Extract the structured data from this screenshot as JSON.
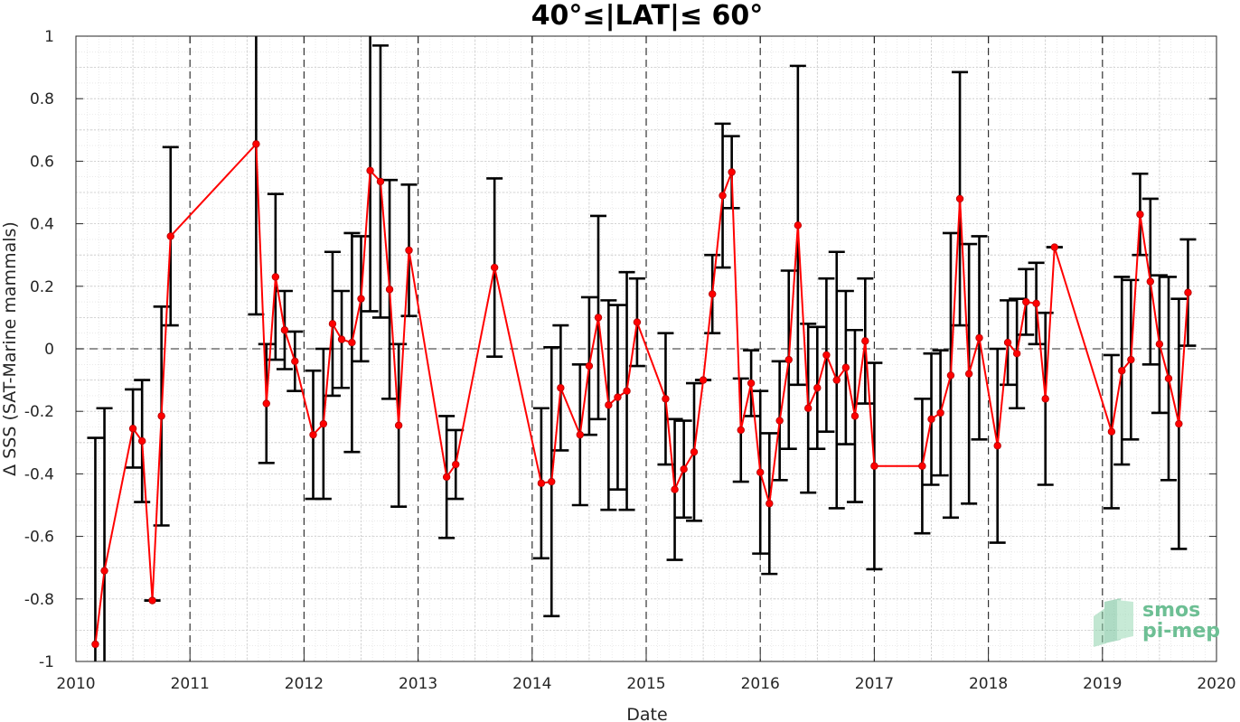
{
  "chart_data": {
    "type": "line",
    "title": "40°≤|LAT|≤ 60°",
    "xlabel": "Date",
    "ylabel": "Δ SSS (SAT-Marine mammals)",
    "xlim": [
      2010,
      2020
    ],
    "ylim": [
      -1,
      1
    ],
    "x_ticks": [
      "2010",
      "2011",
      "2012",
      "2013",
      "2014",
      "2015",
      "2016",
      "2017",
      "2018",
      "2019",
      "2020"
    ],
    "y_ticks": [
      "-1",
      "-0.8",
      "-0.6",
      "-0.4",
      "-0.2",
      "0",
      "0.2",
      "0.4",
      "0.6",
      "0.8",
      "1"
    ],
    "grid": "major and minor",
    "reference_line": 0,
    "series": [
      {
        "color": "#ff0000",
        "errorbar_color": "#000000",
        "points": [
          {
            "x": 2010.17,
            "y": -0.945,
            "err": 0.66
          },
          {
            "x": 2010.25,
            "y": -0.71,
            "err": 0.52
          },
          {
            "x": 2010.5,
            "y": -0.255,
            "err": 0.125
          },
          {
            "x": 2010.58,
            "y": -0.295,
            "err": 0.195
          },
          {
            "x": 2010.67,
            "y": -0.805,
            "err": 0.0
          },
          {
            "x": 2010.75,
            "y": -0.215,
            "err": 0.35
          },
          {
            "x": 2010.83,
            "y": 0.36,
            "err": 0.285
          },
          {
            "x": 2011.58,
            "y": 0.655,
            "err": 0.545
          },
          {
            "x": 2011.67,
            "y": -0.175,
            "err": 0.19
          },
          {
            "x": 2011.75,
            "y": 0.23,
            "err": 0.265
          },
          {
            "x": 2011.83,
            "y": 0.06,
            "err": 0.125
          },
          {
            "x": 2011.92,
            "y": -0.04,
            "err": 0.095
          },
          {
            "x": 2012.08,
            "y": -0.275,
            "err": 0.205
          },
          {
            "x": 2012.17,
            "y": -0.24,
            "err": 0.24
          },
          {
            "x": 2012.25,
            "y": 0.08,
            "err": 0.23
          },
          {
            "x": 2012.33,
            "y": 0.03,
            "err": 0.155
          },
          {
            "x": 2012.42,
            "y": 0.02,
            "err": 0.35
          },
          {
            "x": 2012.5,
            "y": 0.16,
            "err": 0.2
          },
          {
            "x": 2012.58,
            "y": 0.57,
            "err": 0.45
          },
          {
            "x": 2012.67,
            "y": 0.535,
            "err": 0.435
          },
          {
            "x": 2012.75,
            "y": 0.19,
            "err": 0.35
          },
          {
            "x": 2012.83,
            "y": -0.245,
            "err": 0.26
          },
          {
            "x": 2012.92,
            "y": 0.315,
            "err": 0.21
          },
          {
            "x": 2013.25,
            "y": -0.41,
            "err": 0.195
          },
          {
            "x": 2013.33,
            "y": -0.37,
            "err": 0.11
          },
          {
            "x": 2013.67,
            "y": 0.26,
            "err": 0.285
          },
          {
            "x": 2014.08,
            "y": -0.43,
            "err": 0.24
          },
          {
            "x": 2014.17,
            "y": -0.425,
            "err": 0.43
          },
          {
            "x": 2014.25,
            "y": -0.125,
            "err": 0.2
          },
          {
            "x": 2014.42,
            "y": -0.275,
            "err": 0.225
          },
          {
            "x": 2014.5,
            "y": -0.055,
            "err": 0.22
          },
          {
            "x": 2014.58,
            "y": 0.1,
            "err": 0.325
          },
          {
            "x": 2014.67,
            "y": -0.18,
            "err": 0.335
          },
          {
            "x": 2014.75,
            "y": -0.155,
            "err": 0.295
          },
          {
            "x": 2014.83,
            "y": -0.135,
            "err": 0.38
          },
          {
            "x": 2014.92,
            "y": 0.085,
            "err": 0.14
          },
          {
            "x": 2015.17,
            "y": -0.16,
            "err": 0.21
          },
          {
            "x": 2015.25,
            "y": -0.45,
            "err": 0.225
          },
          {
            "x": 2015.33,
            "y": -0.385,
            "err": 0.155
          },
          {
            "x": 2015.42,
            "y": -0.33,
            "err": 0.22
          },
          {
            "x": 2015.5,
            "y": -0.1,
            "err": 0.0
          },
          {
            "x": 2015.58,
            "y": 0.175,
            "err": 0.125
          },
          {
            "x": 2015.67,
            "y": 0.49,
            "err": 0.23
          },
          {
            "x": 2015.75,
            "y": 0.565,
            "err": 0.115
          },
          {
            "x": 2015.83,
            "y": -0.26,
            "err": 0.165
          },
          {
            "x": 2015.92,
            "y": -0.11,
            "err": 0.105
          },
          {
            "x": 2016.0,
            "y": -0.395,
            "err": 0.26
          },
          {
            "x": 2016.08,
            "y": -0.495,
            "err": 0.225
          },
          {
            "x": 2016.17,
            "y": -0.23,
            "err": 0.19
          },
          {
            "x": 2016.25,
            "y": -0.035,
            "err": 0.285
          },
          {
            "x": 2016.33,
            "y": 0.395,
            "err": 0.51
          },
          {
            "x": 2016.42,
            "y": -0.19,
            "err": 0.27
          },
          {
            "x": 2016.5,
            "y": -0.125,
            "err": 0.195
          },
          {
            "x": 2016.58,
            "y": -0.02,
            "err": 0.245
          },
          {
            "x": 2016.67,
            "y": -0.1,
            "err": 0.41
          },
          {
            "x": 2016.75,
            "y": -0.06,
            "err": 0.245
          },
          {
            "x": 2016.83,
            "y": -0.215,
            "err": 0.275
          },
          {
            "x": 2016.92,
            "y": 0.025,
            "err": 0.2
          },
          {
            "x": 2017.0,
            "y": -0.375,
            "err": 0.33
          },
          {
            "x": 2017.42,
            "y": -0.375,
            "err": 0.215
          },
          {
            "x": 2017.5,
            "y": -0.225,
            "err": 0.21
          },
          {
            "x": 2017.58,
            "y": -0.205,
            "err": 0.2
          },
          {
            "x": 2017.67,
            "y": -0.085,
            "err": 0.455
          },
          {
            "x": 2017.75,
            "y": 0.48,
            "err": 0.405
          },
          {
            "x": 2017.83,
            "y": -0.08,
            "err": 0.415
          },
          {
            "x": 2017.92,
            "y": 0.035,
            "err": 0.325
          },
          {
            "x": 2018.08,
            "y": -0.31,
            "err": 0.31
          },
          {
            "x": 2018.17,
            "y": 0.02,
            "err": 0.135
          },
          {
            "x": 2018.25,
            "y": -0.015,
            "err": 0.175
          },
          {
            "x": 2018.33,
            "y": 0.15,
            "err": 0.105
          },
          {
            "x": 2018.42,
            "y": 0.145,
            "err": 0.13
          },
          {
            "x": 2018.5,
            "y": -0.16,
            "err": 0.275
          },
          {
            "x": 2018.58,
            "y": 0.325,
            "err": 0.0
          },
          {
            "x": 2019.08,
            "y": -0.265,
            "err": 0.245
          },
          {
            "x": 2019.17,
            "y": -0.07,
            "err": 0.3
          },
          {
            "x": 2019.25,
            "y": -0.035,
            "err": 0.255
          },
          {
            "x": 2019.33,
            "y": 0.43,
            "err": 0.13
          },
          {
            "x": 2019.42,
            "y": 0.215,
            "err": 0.265
          },
          {
            "x": 2019.5,
            "y": 0.015,
            "err": 0.22
          },
          {
            "x": 2019.58,
            "y": -0.095,
            "err": 0.325
          },
          {
            "x": 2019.67,
            "y": -0.24,
            "err": 0.4
          },
          {
            "x": 2019.75,
            "y": 0.18,
            "err": 0.17
          }
        ]
      }
    ]
  },
  "logo": {
    "line1": "smos",
    "line2": "pi-mep",
    "color": "#6dbf94"
  }
}
